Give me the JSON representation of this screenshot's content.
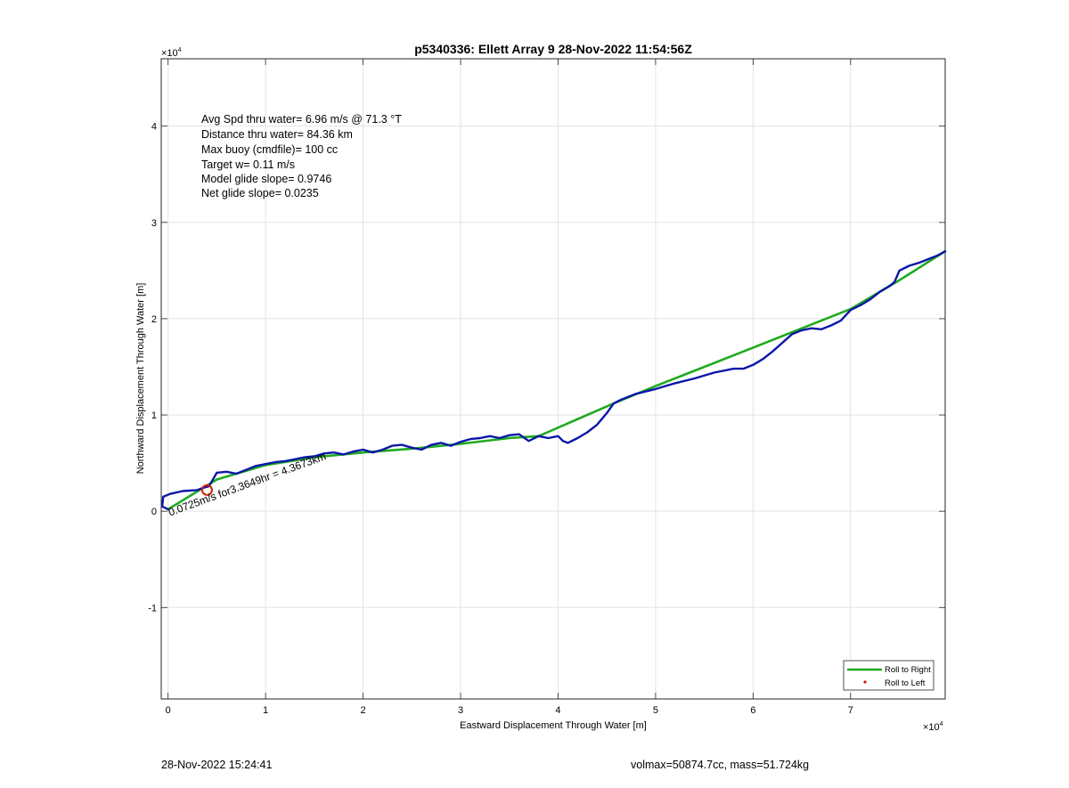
{
  "chart_data": {
    "type": "line",
    "title": "p5340336: Ellett Array 9 28-Nov-2022 11:54:56Z",
    "xlabel": "Eastward Displacement Through Water [m]",
    "ylabel": "Northward Displacement Through Water [m]",
    "x_exponent": "×10^4",
    "y_exponent": "×10^4",
    "xlim": [
      -0.07,
      7.97
    ],
    "ylim": [
      -1.95,
      4.7
    ],
    "x_ticks": [
      0,
      1,
      2,
      3,
      4,
      5,
      6,
      7
    ],
    "x_tick_labels": [
      "0",
      "1",
      "2",
      "3",
      "4",
      "5",
      "6",
      "7"
    ],
    "y_ticks": [
      -1,
      0,
      1,
      2,
      3,
      4
    ],
    "y_tick_labels": [
      "-1",
      "0",
      "1",
      "2",
      "3",
      "4"
    ],
    "grid": true,
    "legend_position": "bottom-right",
    "series": [
      {
        "name": "Roll to Right",
        "color": "#1faa1f",
        "x": [
          0,
          0.5,
          1.0,
          1.5,
          2.0,
          2.5,
          3.0,
          3.5,
          3.8,
          4.57,
          5.0,
          6.0,
          7.0,
          7.5,
          7.97
        ],
        "y": [
          0.02,
          0.33,
          0.48,
          0.56,
          0.61,
          0.65,
          0.7,
          0.76,
          0.78,
          1.12,
          1.3,
          1.7,
          2.1,
          2.4,
          2.7
        ]
      },
      {
        "name": "Roll to Left",
        "color": "#dd1111",
        "x": [],
        "y": []
      },
      {
        "name": "",
        "color": "#0a17a8",
        "x": [
          0.0,
          -0.06,
          -0.05,
          0.02,
          0.15,
          0.3,
          0.35,
          0.42,
          0.5,
          0.6,
          0.7,
          0.8,
          0.9,
          1.0,
          1.1,
          1.2,
          1.3,
          1.4,
          1.5,
          1.6,
          1.7,
          1.8,
          1.9,
          2.0,
          2.1,
          2.2,
          2.3,
          2.4,
          2.5,
          2.6,
          2.7,
          2.8,
          2.9,
          3.0,
          3.1,
          3.2,
          3.3,
          3.4,
          3.5,
          3.6,
          3.7,
          3.8,
          3.9,
          4.0,
          4.05,
          4.1,
          4.2,
          4.3,
          4.4,
          4.5,
          4.57,
          4.65,
          4.8,
          5.0,
          5.2,
          5.4,
          5.6,
          5.8,
          5.9,
          6.0,
          6.1,
          6.2,
          6.3,
          6.4,
          6.5,
          6.6,
          6.7,
          6.8,
          6.9,
          7.0,
          7.1,
          7.2,
          7.3,
          7.4,
          7.45,
          7.5,
          7.6,
          7.7,
          7.8,
          7.9,
          7.97
        ],
        "y": [
          0.02,
          0.05,
          0.15,
          0.18,
          0.21,
          0.22,
          0.24,
          0.26,
          0.4,
          0.41,
          0.39,
          0.43,
          0.47,
          0.49,
          0.51,
          0.52,
          0.54,
          0.56,
          0.57,
          0.6,
          0.61,
          0.59,
          0.62,
          0.64,
          0.61,
          0.64,
          0.68,
          0.69,
          0.66,
          0.64,
          0.69,
          0.71,
          0.68,
          0.72,
          0.75,
          0.76,
          0.78,
          0.76,
          0.79,
          0.8,
          0.73,
          0.78,
          0.76,
          0.78,
          0.73,
          0.71,
          0.76,
          0.82,
          0.9,
          1.02,
          1.12,
          1.16,
          1.22,
          1.27,
          1.33,
          1.38,
          1.44,
          1.48,
          1.48,
          1.52,
          1.58,
          1.66,
          1.75,
          1.84,
          1.88,
          1.9,
          1.89,
          1.93,
          1.98,
          2.09,
          2.14,
          2.2,
          2.28,
          2.34,
          2.38,
          2.5,
          2.55,
          2.58,
          2.62,
          2.66,
          2.7
        ]
      }
    ],
    "markers": [
      {
        "type": "circle",
        "x": 0.4,
        "y": 0.22,
        "color": "#cc2200"
      }
    ],
    "annotation": {
      "text": "0.0725m/s for3.3649hr = 4.3673km",
      "x": 0.02,
      "y": -0.05,
      "rotation_deg": -20
    },
    "stats": [
      "Avg Spd thru water=  6.96 m/s @  71.3 °T",
      "Distance thru water= 84.36 km",
      "Max buoy (cmdfile)= 100 cc",
      "Target w= 0.11 m/s",
      "Model glide slope= 0.9746",
      "Net glide slope= 0.0235"
    ]
  },
  "footer": {
    "timestamp": "28-Nov-2022 15:24:41",
    "vol_mass": "volmax=50874.7cc, mass=51.724kg"
  }
}
